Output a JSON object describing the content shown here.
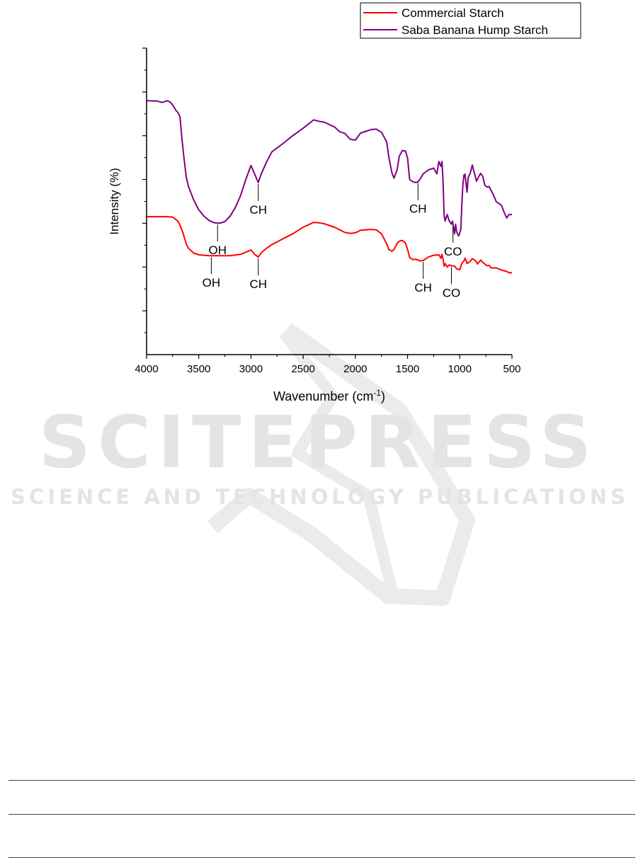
{
  "watermark": {
    "title": "SCITEPRESS",
    "subtitle": "SCIENCE AND TECHNOLOGY PUBLICATIONS"
  },
  "chart_data": {
    "type": "line",
    "xlabel": "Wavenumber (cm",
    "xlabel_sup": "-1",
    "xlabel_close": ")",
    "ylabel": "Intensity (%)",
    "xlim": [
      4000,
      500
    ],
    "x_ticks": [
      "4000",
      "3500",
      "3000",
      "2500",
      "2000",
      "1500",
      "1000",
      "500"
    ],
    "y_tick_labels": "none",
    "legend_position": "top-right",
    "series": [
      {
        "name": "Commercial Starch",
        "color": "#ff0000",
        "x": [
          4000,
          3900,
          3800,
          3750,
          3700,
          3680,
          3650,
          3620,
          3600,
          3550,
          3500,
          3400,
          3300,
          3200,
          3100,
          3050,
          3000,
          2960,
          2930,
          2900,
          2850,
          2800,
          2700,
          2600,
          2500,
          2400,
          2350,
          2300,
          2200,
          2100,
          2050,
          2000,
          1950,
          1900,
          1850,
          1800,
          1750,
          1700,
          1680,
          1650,
          1630,
          1600,
          1580,
          1550,
          1520,
          1500,
          1480,
          1450,
          1420,
          1400,
          1380,
          1350,
          1300,
          1250,
          1200,
          1180,
          1170,
          1160,
          1150,
          1140,
          1120,
          1100,
          1080,
          1050,
          1030,
          1000,
          980,
          960,
          950,
          940,
          930,
          900,
          880,
          850,
          830,
          800,
          780,
          760,
          740,
          720,
          700,
          650,
          600,
          550,
          520,
          500
        ],
        "y": [
          31.5,
          31.5,
          31.5,
          31.4,
          30.5,
          29.6,
          27.7,
          25.3,
          24.3,
          23.2,
          22.8,
          22.6,
          22.6,
          22.6,
          22.9,
          23.4,
          23.9,
          22.8,
          22.3,
          23.3,
          24.3,
          25.1,
          26.4,
          27.6,
          29.1,
          30.2,
          30.1,
          29.9,
          29.1,
          27.9,
          27.7,
          27.8,
          28.4,
          28.5,
          28.6,
          28.5,
          27.6,
          25.3,
          24.0,
          23.6,
          24.0,
          25.4,
          25.9,
          26.1,
          25.5,
          24.0,
          22.2,
          21.7,
          21.8,
          21.6,
          21.4,
          21.5,
          22.3,
          22.7,
          22.8,
          22.0,
          22.9,
          21.8,
          20.2,
          20.8,
          20.0,
          20.5,
          20.3,
          20.2,
          19.6,
          19.4,
          20.8,
          21.4,
          22.0,
          21.6,
          20.8,
          21.3,
          21.9,
          21.5,
          20.7,
          21.6,
          21.1,
          20.7,
          20.3,
          20.4,
          19.8,
          19.8,
          19.3,
          19.0,
          18.6,
          18.8
        ]
      },
      {
        "name": "Saba Banana Hump Starch",
        "color": "#800080",
        "x": [
          4000,
          3900,
          3850,
          3800,
          3770,
          3750,
          3720,
          3700,
          3680,
          3660,
          3640,
          3620,
          3600,
          3550,
          3500,
          3450,
          3400,
          3350,
          3300,
          3250,
          3200,
          3150,
          3100,
          3050,
          3000,
          2960,
          2930,
          2900,
          2850,
          2800,
          2700,
          2600,
          2500,
          2400,
          2350,
          2300,
          2200,
          2150,
          2100,
          2050,
          2000,
          1950,
          1900,
          1850,
          1800,
          1750,
          1700,
          1680,
          1650,
          1630,
          1600,
          1580,
          1550,
          1520,
          1500,
          1480,
          1450,
          1420,
          1400,
          1380,
          1350,
          1300,
          1250,
          1220,
          1200,
          1180,
          1170,
          1160,
          1150,
          1140,
          1120,
          1100,
          1080,
          1070,
          1050,
          1040,
          1030,
          1010,
          1000,
          990,
          980,
          970,
          960,
          950,
          940,
          930,
          920,
          900,
          880,
          860,
          840,
          820,
          800,
          780,
          760,
          740,
          720,
          700,
          680,
          650,
          600,
          580,
          550,
          530,
          500
        ],
        "y": [
          58.0,
          57.9,
          57.6,
          58.0,
          57.6,
          57.0,
          55.8,
          55.3,
          54.3,
          49.0,
          44.5,
          40.6,
          38.5,
          35.4,
          33.1,
          31.6,
          30.6,
          30.1,
          30.0,
          30.4,
          31.6,
          33.6,
          36.3,
          40.0,
          43.2,
          41.0,
          39.3,
          41.4,
          44.0,
          46.3,
          48.1,
          50.0,
          51.7,
          53.6,
          53.3,
          53.1,
          52.0,
          50.9,
          50.5,
          49.2,
          49.0,
          50.6,
          51.0,
          51.4,
          51.5,
          50.8,
          48.6,
          45.2,
          41.5,
          40.3,
          42.2,
          45.3,
          46.6,
          46.5,
          44.9,
          40.0,
          39.5,
          39.3,
          39.5,
          40.1,
          41.3,
          42.2,
          42.6,
          41.3,
          44.1,
          43.0,
          44.1,
          39.6,
          31.7,
          30.5,
          32.0,
          30.5,
          29.8,
          30.5,
          27.6,
          29.8,
          28.0,
          27.1,
          27.8,
          28.6,
          34.3,
          38.8,
          41.0,
          41.2,
          39.2,
          37.1,
          40.4,
          41.4,
          43.3,
          41.5,
          39.6,
          40.6,
          41.4,
          40.7,
          38.7,
          38.3,
          38.4,
          37.5,
          36.6,
          34.9,
          34.1,
          32.8,
          31.2,
          32.0,
          32.0
        ]
      }
    ],
    "annotations": [
      {
        "label": "OH",
        "series": 1,
        "x": 3320
      },
      {
        "label": "CH",
        "series": 1,
        "x": 2930
      },
      {
        "label": "CH",
        "series": 1,
        "x": 1400
      },
      {
        "label": "CO",
        "series": 1,
        "x": 1065
      },
      {
        "label": "OH",
        "series": 0,
        "x": 3380
      },
      {
        "label": "CH",
        "series": 0,
        "x": 2930
      },
      {
        "label": "CH",
        "series": 0,
        "x": 1350
      },
      {
        "label": "CO",
        "series": 0,
        "x": 1080
      }
    ]
  }
}
